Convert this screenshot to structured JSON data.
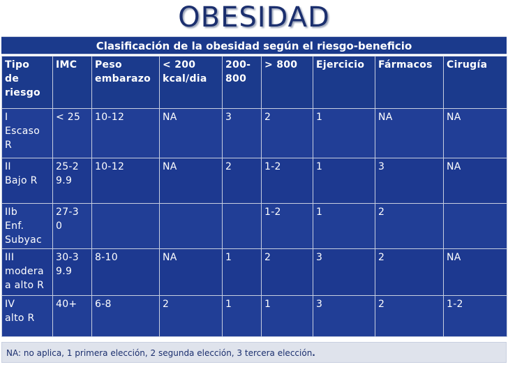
{
  "title": "OBESIDAD",
  "subtitle": "Clasificación de la obesidad según el riesgo-beneficio",
  "table": {
    "headers": [
      "Tipo\nde\nriesgo",
      "IMC",
      "Peso\nembarazo",
      "< 200\nkcal/dia",
      "200-\n800",
      "> 800",
      "Ejercicio",
      "Fármacos",
      "Cirugía"
    ],
    "rows": [
      [
        "I\nEscaso\nR",
        "< 25",
        "10-12",
        "NA",
        "3",
        "2",
        "1",
        "NA",
        "NA"
      ],
      [
        "II\nBajo R",
        "25-2\n9.9",
        "10-12",
        "NA",
        "2",
        "1-2",
        "1",
        "3",
        "NA"
      ],
      [
        "IIb\nEnf.\nSubyac",
        "27-3\n0",
        "",
        "",
        "",
        "1-2",
        "1",
        "2",
        ""
      ],
      [
        "III\nmodera\na alto R",
        "30-3\n9.9",
        "8-10",
        "NA",
        "1",
        "2",
        "3",
        "2",
        "NA"
      ],
      [
        "IV\n alto R",
        "40+",
        "6-8",
        "2",
        "1",
        "1",
        "3",
        "2",
        "1-2"
      ]
    ]
  },
  "footnote": {
    "text": "NA: no aplica, 1 primera elección, 2 segunda elección, 3 tercera elección",
    "end": "."
  },
  "colors": {
    "title": "#1b2f6e",
    "table_bg": "#1b3a8c",
    "footnote_bg": "#dfe3ec"
  }
}
